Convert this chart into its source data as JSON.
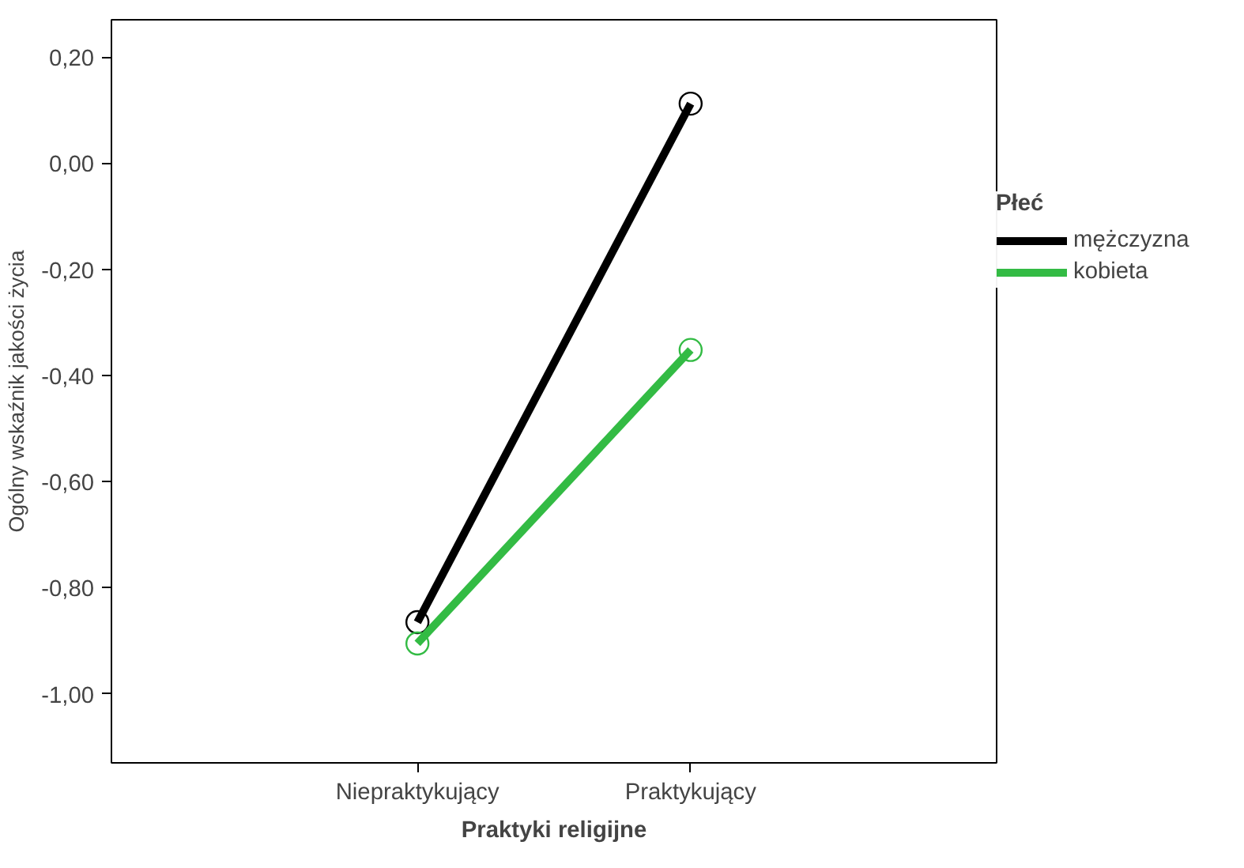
{
  "chart_data": {
    "type": "line",
    "xlabel": "Praktyki religijne",
    "ylabel": "Ogólny wskaźnik jakości życia",
    "legend_title": "Płeć",
    "categories": [
      "Niepraktykujący",
      "Praktykujący"
    ],
    "series": [
      {
        "name": "mężczyzna",
        "color": "#000000",
        "values": [
          -0.865,
          0.112
        ]
      },
      {
        "name": "kobieta",
        "color": "#33bb44",
        "values": [
          -0.905,
          -0.352
        ]
      }
    ],
    "ylim": [
      -1.13,
      0.27
    ],
    "yticks": [
      {
        "value": -1.0,
        "label": "-1,00"
      },
      {
        "value": -0.8,
        "label": "-0,80"
      },
      {
        "value": -0.6,
        "label": "-0,60"
      },
      {
        "value": -0.4,
        "label": "-0,40"
      },
      {
        "value": -0.2,
        "label": "-0,20"
      },
      {
        "value": 0.0,
        "label": "0,00"
      },
      {
        "value": 0.2,
        "label": "0,20"
      }
    ],
    "grid": false,
    "legend": "right",
    "marker": "circle",
    "line_style": "solid"
  }
}
